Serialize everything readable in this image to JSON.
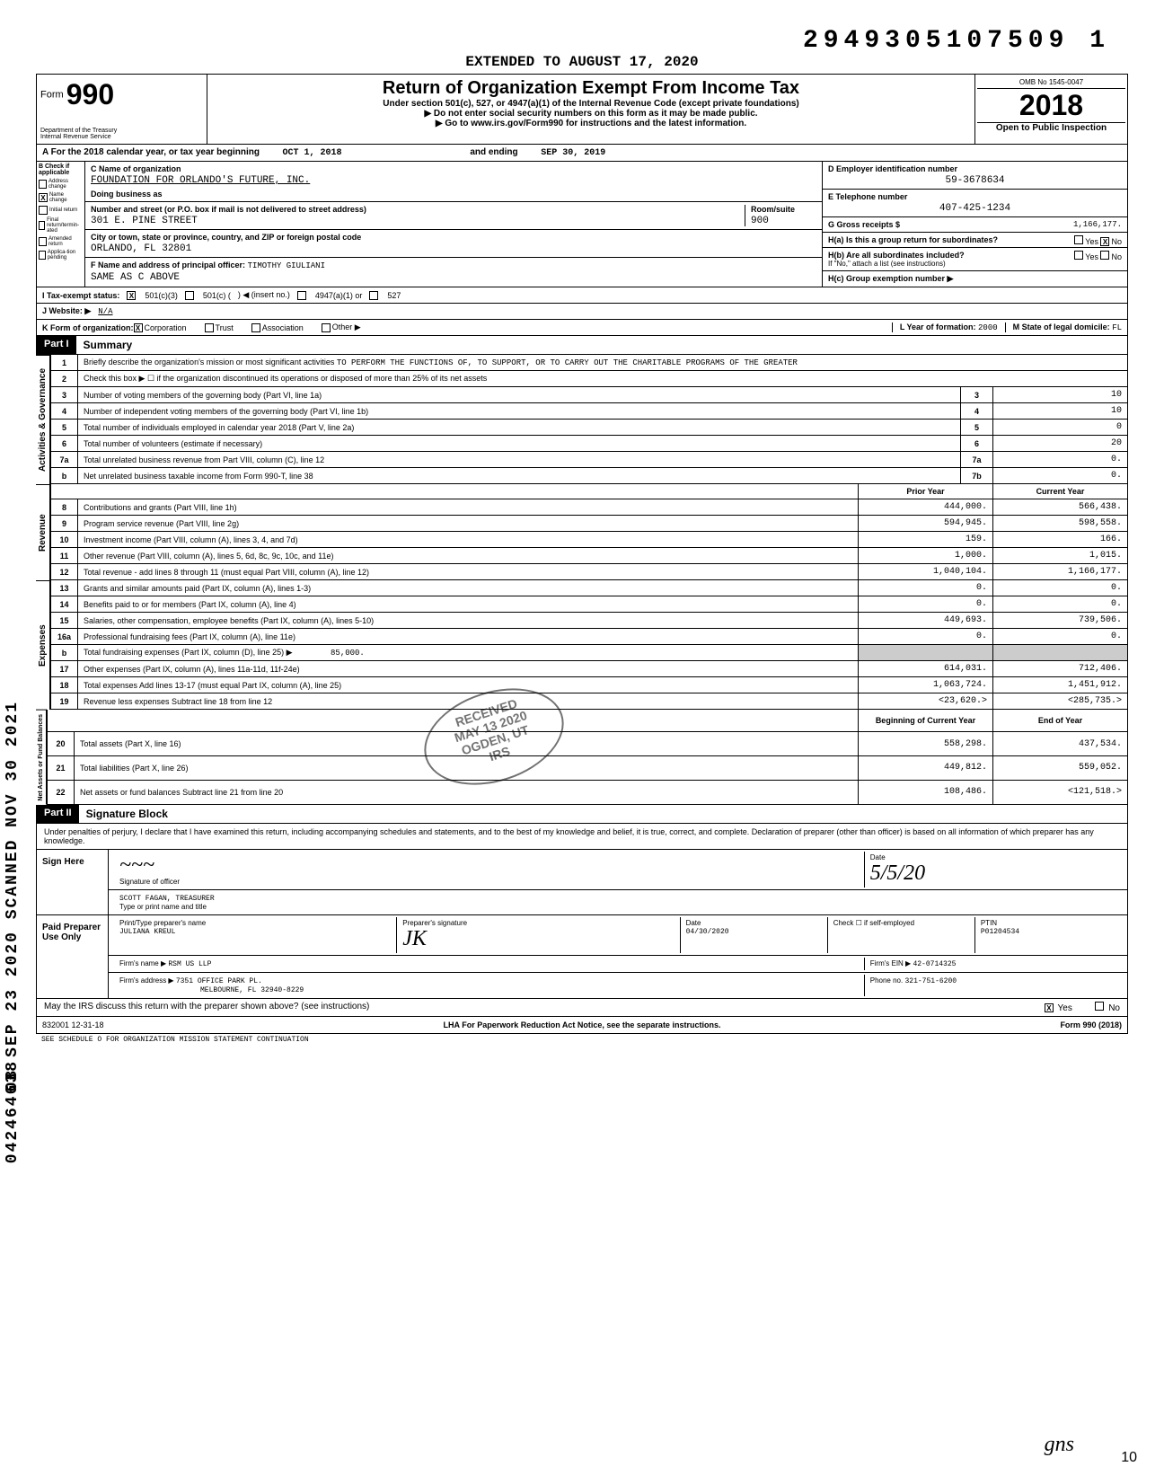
{
  "dln": "2949305107509  1",
  "extended_to": "EXTENDED TO AUGUST 17, 2020",
  "form_number_prefix": "Form",
  "form_number": "990",
  "dept": "Department of the Treasury\nInternal Revenue Service",
  "title": "Return of Organization Exempt From Income Tax",
  "subtitle": "Under section 501(c), 527, or 4947(a)(1) of the Internal Revenue Code (except private foundations)",
  "note1": "▶ Do not enter social security numbers on this form as it may be made public.",
  "note2": "▶ Go to www.irs.gov/Form990 for instructions and the latest information.",
  "omb": "OMB No  1545-0047",
  "year": "2018",
  "open_public": "Open to Public Inspection",
  "row_a": {
    "label": "A  For the 2018 calendar year, or tax year beginning",
    "begin": "OCT 1, 2018",
    "mid": "and ending",
    "end": "SEP 30, 2019"
  },
  "col_b": {
    "header": "B  Check if applicable",
    "items": [
      {
        "label": "Address change",
        "checked": false
      },
      {
        "label": "Name change",
        "checked": true
      },
      {
        "label": "Initial return",
        "checked": false
      },
      {
        "label": "Final return/termin-ated",
        "checked": false
      },
      {
        "label": "Amended return",
        "checked": false
      },
      {
        "label": "Applica-tion pending",
        "checked": false
      }
    ]
  },
  "col_c": {
    "name_label": "C Name of organization",
    "name": "FOUNDATION FOR ORLANDO'S FUTURE, INC.",
    "dba_label": "Doing business as",
    "dba": "",
    "street_label": "Number and street (or P.O. box if mail is not delivered to street address)",
    "street": "301 E. PINE STREET",
    "room_label": "Room/suite",
    "room": "900",
    "city_label": "City or town, state or province, country, and ZIP or foreign postal code",
    "city": "ORLANDO, FL  32801",
    "officer_label": "F Name and address of principal officer:",
    "officer_name": "TIMOTHY GIULIANI",
    "officer_addr": "SAME AS C ABOVE"
  },
  "col_d": {
    "ein_label": "D  Employer identification number",
    "ein": "59-3678634",
    "phone_label": "E  Telephone number",
    "phone": "407-425-1234",
    "gross_label": "G  Gross receipts $",
    "gross": "1,166,177.",
    "ha_label": "H(a) Is this a group return for subordinates?",
    "ha_yes": "Yes",
    "ha_no": "No",
    "ha_no_checked": "X",
    "hb_label": "H(b) Are all subordinates included?",
    "hb_yes": "Yes",
    "hb_no": "No",
    "hb_note": "If \"No,\" attach a list (see instructions)",
    "hc_label": "H(c) Group exemption number ▶",
    "hc": ""
  },
  "row_i": {
    "label": "I  Tax-exempt status:",
    "opt1": "501(c)(3)",
    "opt1_checked": "X",
    "opt2": "501(c) (",
    "opt2_insert": ")  ◀  (insert no.)",
    "opt3": "4947(a)(1) or",
    "opt4": "527"
  },
  "row_j": {
    "label": "J  Website: ▶",
    "value": "N/A"
  },
  "row_k": {
    "label": "K  Form of organization:",
    "corp": "Corporation",
    "corp_checked": "X",
    "trust": "Trust",
    "assoc": "Association",
    "other": "Other ▶",
    "l_label": "L Year of formation:",
    "l_val": "2000",
    "m_label": "M State of legal domicile:",
    "m_val": "FL"
  },
  "part1": {
    "header": "Part I",
    "title": "Summary",
    "line1_label": "Briefly describe the organization's mission or most significant activities",
    "line1_val": "TO PERFORM THE FUNCTIONS OF, TO SUPPORT, OR TO CARRY OUT THE CHARITABLE PROGRAMS OF THE GREATER",
    "line2": "Check this box ▶ ☐  if the organization discontinued its operations or disposed of more than 25% of its net assets",
    "governance_rows": [
      {
        "n": "3",
        "label": "Number of voting members of the governing body (Part VI, line 1a)",
        "box": "3",
        "val": "10"
      },
      {
        "n": "4",
        "label": "Number of independent voting members of the governing body (Part VI, line 1b)",
        "box": "4",
        "val": "10"
      },
      {
        "n": "5",
        "label": "Total number of individuals employed in calendar year 2018 (Part V, line 2a)",
        "box": "5",
        "val": "0"
      },
      {
        "n": "6",
        "label": "Total number of volunteers (estimate if necessary)",
        "box": "6",
        "val": "20"
      },
      {
        "n": "7a",
        "label": "Total unrelated business revenue from Part VIII, column (C), line 12",
        "box": "7a",
        "val": "0."
      },
      {
        "n": "b",
        "label": "Net unrelated business taxable income from Form 990-T, line 38",
        "box": "7b",
        "val": "0."
      }
    ],
    "col_headers": {
      "prior": "Prior Year",
      "current": "Current Year"
    },
    "revenue_rows": [
      {
        "n": "8",
        "label": "Contributions and grants (Part VIII, line 1h)",
        "prior": "444,000.",
        "current": "566,438."
      },
      {
        "n": "9",
        "label": "Program service revenue (Part VIII, line 2g)",
        "prior": "594,945.",
        "current": "598,558."
      },
      {
        "n": "10",
        "label": "Investment income (Part VIII, column (A), lines 3, 4, and 7d)",
        "prior": "159.",
        "current": "166."
      },
      {
        "n": "11",
        "label": "Other revenue (Part VIII, column (A), lines 5, 6d, 8c, 9c, 10c, and 11e)",
        "prior": "1,000.",
        "current": "1,015."
      },
      {
        "n": "12",
        "label": "Total revenue - add lines 8 through 11 (must equal Part VIII, column (A), line 12)",
        "prior": "1,040,104.",
        "current": "1,166,177."
      }
    ],
    "expense_rows": [
      {
        "n": "13",
        "label": "Grants and similar amounts paid (Part IX, column (A), lines 1-3)",
        "prior": "0.",
        "current": "0."
      },
      {
        "n": "14",
        "label": "Benefits paid to or for members (Part IX, column (A), line 4)",
        "prior": "0.",
        "current": "0."
      },
      {
        "n": "15",
        "label": "Salaries, other compensation, employee benefits (Part IX, column (A), lines 5-10)",
        "prior": "449,693.",
        "current": "739,506."
      },
      {
        "n": "16a",
        "label": "Professional fundraising fees (Part IX, column (A), line 11e)",
        "prior": "0.",
        "current": "0."
      },
      {
        "n": "b",
        "label": "Total fundraising expenses (Part IX, column (D), line 25)  ▶",
        "inline_val": "85,000.",
        "prior": "",
        "current": "",
        "shaded": true
      },
      {
        "n": "17",
        "label": "Other expenses (Part IX, column (A), lines 11a-11d, 11f-24e)",
        "prior": "614,031.",
        "current": "712,406."
      },
      {
        "n": "18",
        "label": "Total expenses  Add lines 13-17 (must equal Part IX, column (A), line 25)",
        "prior": "1,063,724.",
        "current": "1,451,912."
      },
      {
        "n": "19",
        "label": "Revenue less expenses  Subtract line 18 from line 12",
        "prior": "<23,620.>",
        "current": "<285,735.>"
      }
    ],
    "net_headers": {
      "begin": "Beginning of Current Year",
      "end": "End of Year"
    },
    "net_rows": [
      {
        "n": "20",
        "label": "Total assets (Part X, line 16)",
        "prior": "558,298.",
        "current": "437,534."
      },
      {
        "n": "21",
        "label": "Total liabilities (Part X, line 26)",
        "prior": "449,812.",
        "current": "559,052."
      },
      {
        "n": "22",
        "label": "Net assets or fund balances  Subtract line 21 from line 20",
        "prior": "108,486.",
        "current": "<121,518.>"
      }
    ],
    "side_labels": {
      "gov": "Activities & Governance",
      "rev": "Revenue",
      "exp": "Expenses",
      "net": "Net Assets or Fund Balances"
    }
  },
  "part2": {
    "header": "Part II",
    "title": "Signature Block",
    "perjury": "Under penalties of perjury, I declare that I have examined this return, including accompanying schedules and statements, and to the best of my knowledge and belief, it is true, correct, and complete. Declaration of preparer (other than officer) is based on all information of which preparer has any knowledge.",
    "sign_here": "Sign Here",
    "sig_officer_label": "Signature of officer",
    "date_label": "Date",
    "sig_date": "5/5/20",
    "officer_print": "SCOTT FAGAN, TREASURER",
    "officer_print_label": "Type or print name and title",
    "paid_label": "Paid Preparer Use Only",
    "preparer": {
      "name_label": "Print/Type preparer's name",
      "name": "JULIANA KREUL",
      "sig_label": "Preparer's signature",
      "date_label": "Date",
      "date": "04/30/2020",
      "check_label": "Check ☐ if self-employed",
      "ptin_label": "PTIN",
      "ptin": "P01204534",
      "firm_name_label": "Firm's name ▶",
      "firm_name": "RSM US LLP",
      "firm_ein_label": "Firm's EIN ▶",
      "firm_ein": "42-0714325",
      "firm_addr_label": "Firm's address ▶",
      "firm_addr1": "7351 OFFICE PARK PL.",
      "firm_addr2": "MELBOURNE, FL 32940-8229",
      "phone_label": "Phone no.",
      "phone": "321-751-6200"
    },
    "discuss": "May the IRS discuss this return with the preparer shown above? (see instructions)",
    "discuss_yes": "Yes",
    "discuss_yes_checked": "X",
    "discuss_no": "No"
  },
  "footer": {
    "code": "832001  12-31-18",
    "lha": "LHA  For Paperwork Reduction Act Notice, see the separate instructions.",
    "sched": "SEE SCHEDULE O FOR ORGANIZATION MISSION STATEMENT CONTINUATION",
    "form": "Form 990 (2018)"
  },
  "stamps": {
    "side": "08 SEP 23 2020  SCANNED NOV 30 2021",
    "side2": "042464638",
    "received": "RECEIVED\nMAY 13 2020\nOGDEN, UT\nIRS",
    "page": "10",
    "initials": "gns"
  },
  "colors": {
    "text": "#000000",
    "bg": "#ffffff",
    "header_bg": "#000000",
    "header_fg": "#ffffff"
  }
}
